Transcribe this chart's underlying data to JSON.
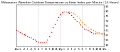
{
  "title": "Milwaukee Weather Outdoor Temperature vs Heat Index per Minute (24 Hours)",
  "background_color": "#ffffff",
  "grid_color": "#b0b0b0",
  "temp_color": "#ff0000",
  "heat_color": "#ff8800",
  "ylim": [
    43,
    87
  ],
  "xlim": [
    0,
    1440
  ],
  "yticks": [
    45,
    50,
    55,
    60,
    65,
    70,
    75,
    80,
    85
  ],
  "xtick_positions": [
    0,
    60,
    120,
    180,
    240,
    300,
    360,
    420,
    480,
    540,
    600,
    660,
    720,
    780,
    840,
    900,
    960,
    1020,
    1080,
    1140,
    1200,
    1260,
    1320,
    1380,
    1440
  ],
  "xtick_labels": [
    "12a",
    "1",
    "2",
    "3",
    "4",
    "5",
    "6",
    "7",
    "8",
    "9",
    "10",
    "11",
    "12p",
    "1",
    "2",
    "3",
    "4",
    "5",
    "6",
    "7",
    "8",
    "9",
    "10",
    "11",
    "12a"
  ],
  "temp_x": [
    0,
    30,
    60,
    90,
    120,
    150,
    180,
    210,
    240,
    270,
    300,
    330,
    360,
    390,
    420,
    450,
    480,
    510,
    540,
    570,
    600,
    630,
    660,
    690,
    720,
    750,
    780,
    810,
    840,
    870,
    900,
    930,
    960,
    990,
    1020,
    1050,
    1080,
    1110,
    1140,
    1170,
    1200,
    1230,
    1260,
    1290,
    1320,
    1350,
    1380,
    1410,
    1440
  ],
  "temp_y": [
    60,
    59,
    58,
    57,
    56,
    55,
    54,
    53,
    52,
    51,
    50,
    49,
    48,
    47,
    47,
    47,
    48,
    50,
    54,
    58,
    63,
    67,
    71,
    74,
    77,
    79,
    80,
    80,
    79,
    78,
    76,
    74,
    72,
    70,
    68,
    66,
    64,
    62,
    61,
    60,
    59,
    58,
    57,
    57,
    57,
    57,
    57,
    57,
    57
  ],
  "heat_x": [
    840,
    870,
    900,
    930,
    960,
    990,
    1020,
    1050,
    1080,
    1110,
    1140,
    1170,
    1200,
    1230,
    1260,
    1290,
    1320,
    1350,
    1380,
    1410,
    1440
  ],
  "heat_y": [
    80,
    80,
    79,
    78,
    77,
    75,
    73,
    71,
    69,
    67,
    65,
    63,
    62,
    61,
    60,
    59,
    58,
    58,
    57,
    57,
    57
  ],
  "vgrid_positions": [
    0,
    360,
    720,
    1080,
    1440
  ],
  "markersize": 2.2,
  "title_fontsize": 3.2,
  "tick_fontsize": 2.8
}
